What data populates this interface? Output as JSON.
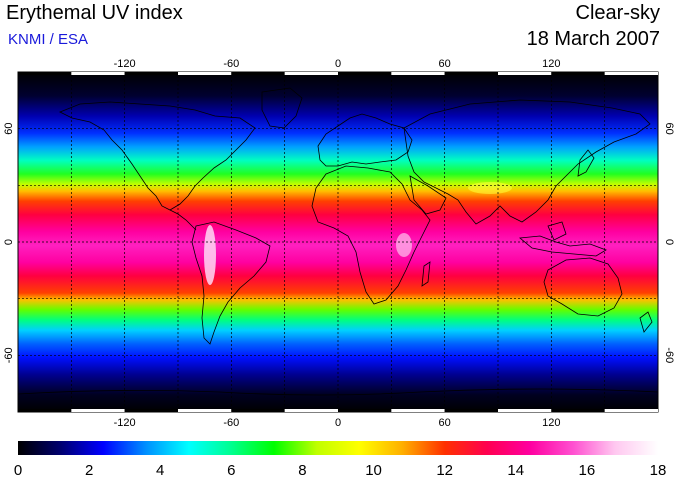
{
  "header": {
    "title": "Erythemal UV index",
    "agency": "KNMI / ESA",
    "condition": "Clear-sky",
    "date": "18 March 2007"
  },
  "map": {
    "lon_ticks": [
      "-120",
      "-60",
      "0",
      "60",
      "120"
    ],
    "lat_ticks": [
      "60",
      "0",
      "-60"
    ],
    "lon_range": [
      -180,
      180
    ],
    "lat_range": [
      -90,
      90
    ],
    "grid": "dotted, every 30 degrees"
  },
  "colorbar": {
    "min": 0,
    "max": 18,
    "tick_labels": [
      "0",
      "2",
      "4",
      "6",
      "8",
      "10",
      "12",
      "14",
      "16",
      "18"
    ],
    "colors": [
      "#000000",
      "#000070",
      "#0000ff",
      "#0090ff",
      "#00ffff",
      "#00ff90",
      "#00ff00",
      "#c0ff00",
      "#ffff00",
      "#ffb000",
      "#ff3000",
      "#ff0050",
      "#ff00a0",
      "#ff50d0",
      "#ffc8f0",
      "#ffffff"
    ]
  }
}
